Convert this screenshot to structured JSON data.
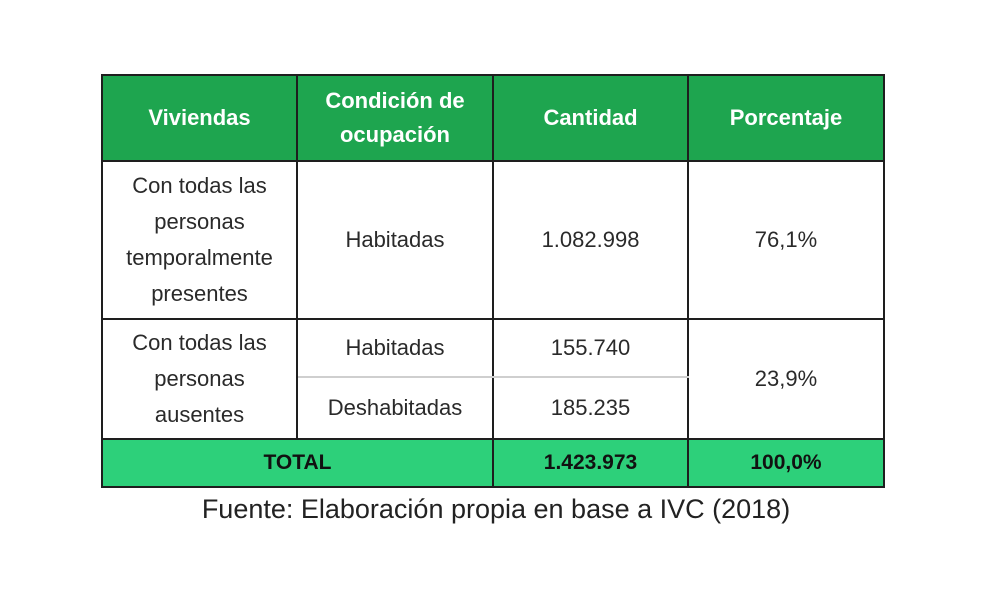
{
  "table": {
    "headers": [
      "Viviendas",
      "Condición de ocupación",
      "Cantidad",
      "Porcentaje"
    ],
    "rows": [
      {
        "viviendas": "Con todas las personas temporalmente presentes",
        "condicion": "Habitadas",
        "cantidad": "1.082.998",
        "porcentaje": "76,1%"
      },
      {
        "viviendas": "Con todas las personas ausentes",
        "sub_rows": [
          {
            "condicion": "Habitadas",
            "cantidad": "155.740"
          },
          {
            "condicion": "Deshabitadas",
            "cantidad": "185.235"
          }
        ],
        "porcentaje": "23,9%"
      }
    ],
    "total": {
      "label": "TOTAL",
      "cantidad": "1.423.973",
      "porcentaje": "100,0%"
    }
  },
  "caption": "Fuente: Elaboración propia en base a IVC (2018)",
  "colors": {
    "header_bg": "#1ea54f",
    "total_bg": "#2dd07a"
  }
}
